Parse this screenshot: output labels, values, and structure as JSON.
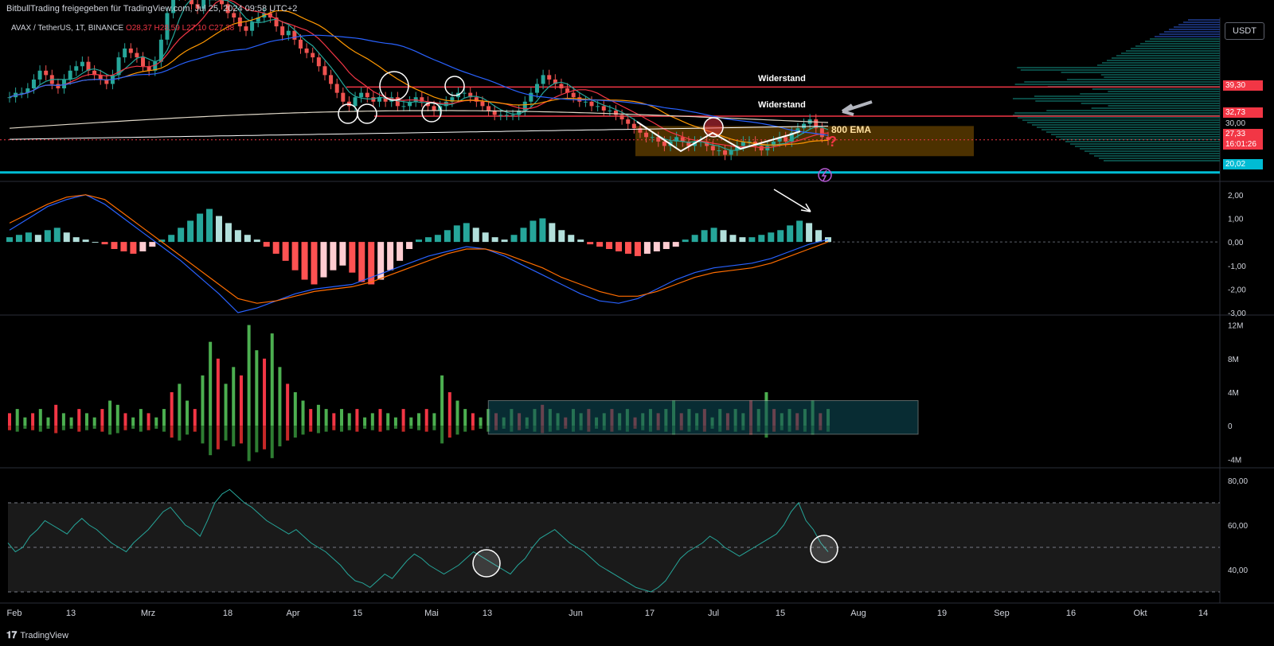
{
  "header": {
    "title": "BitbullTrading freigegeben für TradingView.com, Jul 25, 2024 09:58 UTC+2"
  },
  "legend": {
    "symbol": "AVAX / TetherUS, 1T, BINANCE",
    "o": "O28,37",
    "h": "H28,59",
    "l": "L27,10",
    "c": "C27,38"
  },
  "currency_button": "USDT",
  "price_tags": {
    "p3930": "39,30",
    "p3273": "32,73",
    "p3000": "30,00",
    "p2733": "27,33",
    "countdown": "16:01:26",
    "p2002": "20,02"
  },
  "annotations": {
    "resistance1": "Widerstand",
    "resistance2": "Widerstand",
    "ema": "800 EMA",
    "question": "?"
  },
  "footer": {
    "brand": "TradingView"
  },
  "colors": {
    "bull": "#26a69a",
    "bear": "#ef5350",
    "resistance": "#f23645",
    "support": "#00bcd4",
    "zone": "#8a5a00",
    "vol_box": "#0e4a55"
  },
  "chart_data": [
    {
      "type": "candlestick",
      "title": "AVAX / TetherUS, 1T, BINANCE",
      "x_ticks": [
        "Feb",
        "13",
        "Mrz",
        "18",
        "Apr",
        "15",
        "Mai",
        "13",
        "Jun",
        "17",
        "Jul",
        "15",
        "Aug",
        "19",
        "Sep",
        "16",
        "Okt",
        "14"
      ],
      "y_ticks": [
        "30,00"
      ],
      "ylim": [
        18,
        55
      ],
      "levels": [
        {
          "label": "Widerstand",
          "value": 39.3
        },
        {
          "label": "Widerstand",
          "value": 32.73
        },
        {
          "label": "",
          "value": 20.02
        }
      ],
      "close_series": [
        37,
        38,
        38,
        39,
        41,
        43,
        42,
        40,
        39,
        41,
        43,
        44,
        45,
        43,
        42,
        41,
        40,
        42,
        46,
        48,
        47,
        46,
        44,
        43,
        45,
        50,
        56,
        60,
        62,
        60,
        58,
        57,
        59,
        61,
        60,
        58,
        56,
        55,
        53,
        52,
        54,
        55,
        56,
        55,
        53,
        51,
        52,
        50,
        48,
        47,
        46,
        44,
        42,
        40,
        38,
        36,
        35,
        37,
        38,
        37,
        36,
        37,
        36,
        37,
        35,
        35,
        36,
        37,
        36,
        35,
        34,
        35,
        36,
        37,
        38,
        38,
        37,
        36,
        35,
        34,
        33,
        33,
        33,
        33,
        34,
        36,
        38,
        40,
        42,
        41,
        40,
        39,
        38,
        37,
        36,
        36,
        35,
        35,
        34,
        34,
        33,
        32,
        31,
        30,
        29,
        28,
        28,
        27,
        26,
        27,
        28,
        27,
        26,
        27,
        27,
        26,
        25,
        25,
        24,
        25,
        26,
        27,
        27,
        26,
        25,
        26,
        27,
        28,
        27,
        29,
        30,
        31,
        32,
        30,
        28,
        27.38
      ],
      "close_last": 27.38
    },
    {
      "type": "bar",
      "title": "MACD",
      "y_ticks": [
        "2,00",
        "1,00",
        "0,00",
        "-1,00",
        "-2,00",
        "-3,00"
      ],
      "ylim": [
        -3,
        2
      ],
      "histogram": [
        0.2,
        0.3,
        0.4,
        0.3,
        0.5,
        0.6,
        0.4,
        0.2,
        0.1,
        0.0,
        -0.1,
        -0.3,
        -0.4,
        -0.5,
        -0.4,
        -0.2,
        0.1,
        0.3,
        0.6,
        0.9,
        1.2,
        1.4,
        1.1,
        0.8,
        0.5,
        0.3,
        0.1,
        -0.2,
        -0.5,
        -0.8,
        -1.2,
        -1.6,
        -1.8,
        -1.5,
        -1.2,
        -1.0,
        -1.3,
        -1.7,
        -1.8,
        -1.6,
        -1.2,
        -0.8,
        -0.3,
        0.1,
        0.2,
        0.3,
        0.5,
        0.7,
        0.8,
        0.6,
        0.4,
        0.2,
        0.1,
        0.3,
        0.6,
        0.9,
        1.0,
        0.8,
        0.5,
        0.3,
        0.1,
        -0.1,
        -0.2,
        -0.3,
        -0.4,
        -0.5,
        -0.6,
        -0.5,
        -0.4,
        -0.3,
        -0.2,
        0.1,
        0.3,
        0.5,
        0.6,
        0.5,
        0.3,
        0.2,
        0.2,
        0.3,
        0.4,
        0.5,
        0.7,
        0.9,
        0.8,
        0.5,
        0.2
      ],
      "macd_line": [
        0.5,
        1.0,
        1.5,
        1.8,
        2.0,
        1.6,
        1.0,
        0.4,
        -0.2,
        -0.8,
        -1.5,
        -2.2,
        -3.0,
        -2.8,
        -2.5,
        -2.2,
        -2.0,
        -1.9,
        -1.8,
        -1.5,
        -1.2,
        -0.9,
        -0.6,
        -0.4,
        -0.2,
        -0.3,
        -0.6,
        -1.0,
        -1.4,
        -1.8,
        -2.2,
        -2.5,
        -2.6,
        -2.4,
        -2.0,
        -1.6,
        -1.3,
        -1.1,
        -1.0,
        -0.9,
        -0.7,
        -0.4,
        -0.1,
        0.1
      ],
      "signal_line": [
        0.8,
        1.2,
        1.6,
        1.9,
        2.0,
        1.8,
        1.2,
        0.6,
        0.0,
        -0.6,
        -1.2,
        -1.8,
        -2.4,
        -2.6,
        -2.5,
        -2.3,
        -2.1,
        -2.0,
        -1.9,
        -1.7,
        -1.4,
        -1.1,
        -0.8,
        -0.5,
        -0.3,
        -0.3,
        -0.5,
        -0.8,
        -1.1,
        -1.5,
        -1.8,
        -2.1,
        -2.3,
        -2.3,
        -2.1,
        -1.8,
        -1.5,
        -1.3,
        -1.2,
        -1.1,
        -0.9,
        -0.6,
        -0.3,
        0.0
      ]
    },
    {
      "type": "bar",
      "title": "Volume delta",
      "y_ticks": [
        "12M",
        "8M",
        "4M",
        "0",
        "-4M"
      ],
      "ylim": [
        -5,
        13
      ],
      "values": [
        1.5,
        2,
        1,
        1.5,
        2,
        1,
        2.5,
        1.5,
        1,
        2,
        1.5,
        1,
        2,
        3,
        2.5,
        1.5,
        1,
        2,
        1.5,
        1,
        2,
        4,
        5,
        3,
        2,
        6,
        10,
        8,
        5,
        7,
        6,
        12,
        9,
        8,
        11,
        7,
        5,
        4,
        3,
        2,
        2.5,
        2,
        1.5,
        2,
        1.5,
        2,
        1,
        1.5,
        2,
        1.5,
        1,
        2,
        1,
        1.5,
        2,
        1.5,
        6,
        4,
        3,
        2,
        1.5,
        1,
        2,
        1.5,
        1,
        2,
        1.5,
        1,
        2,
        2.5,
        2,
        1.5,
        1,
        2,
        1.5,
        2,
        1,
        1.5,
        2,
        1.5,
        2,
        1,
        1.5,
        2,
        1.5,
        2,
        3,
        1.5,
        2,
        1.5,
        2,
        1,
        2,
        1.5,
        2,
        1.5,
        3,
        2,
        4,
        2,
        1.5,
        2,
        1.5,
        2,
        3,
        1.5,
        2
      ],
      "highlight_box": {
        "from_index": 62,
        "to_index": 106,
        "top": 3,
        "bottom": -1
      }
    },
    {
      "type": "line",
      "title": "RSI",
      "y_ticks": [
        "80,00",
        "60,00",
        "40,00"
      ],
      "ylim": [
        25,
        85
      ],
      "bands": [
        70,
        50,
        30
      ],
      "values": [
        52,
        48,
        50,
        55,
        58,
        62,
        60,
        58,
        56,
        60,
        63,
        60,
        58,
        55,
        52,
        50,
        48,
        52,
        55,
        58,
        62,
        66,
        68,
        64,
        60,
        58,
        55,
        62,
        70,
        74,
        76,
        73,
        70,
        68,
        65,
        62,
        60,
        58,
        56,
        58,
        55,
        52,
        50,
        48,
        45,
        42,
        38,
        35,
        34,
        32,
        35,
        38,
        36,
        40,
        44,
        47,
        45,
        42,
        40,
        38,
        40,
        42,
        45,
        48,
        46,
        44,
        42,
        40,
        38,
        42,
        45,
        50,
        54,
        56,
        58,
        55,
        52,
        50,
        48,
        45,
        42,
        40,
        38,
        36,
        34,
        32,
        31,
        30,
        32,
        35,
        40,
        45,
        48,
        50,
        52,
        55,
        53,
        50,
        48,
        46,
        48,
        50,
        52,
        54,
        56,
        60,
        66,
        70,
        62,
        58,
        52,
        48
      ]
    }
  ]
}
